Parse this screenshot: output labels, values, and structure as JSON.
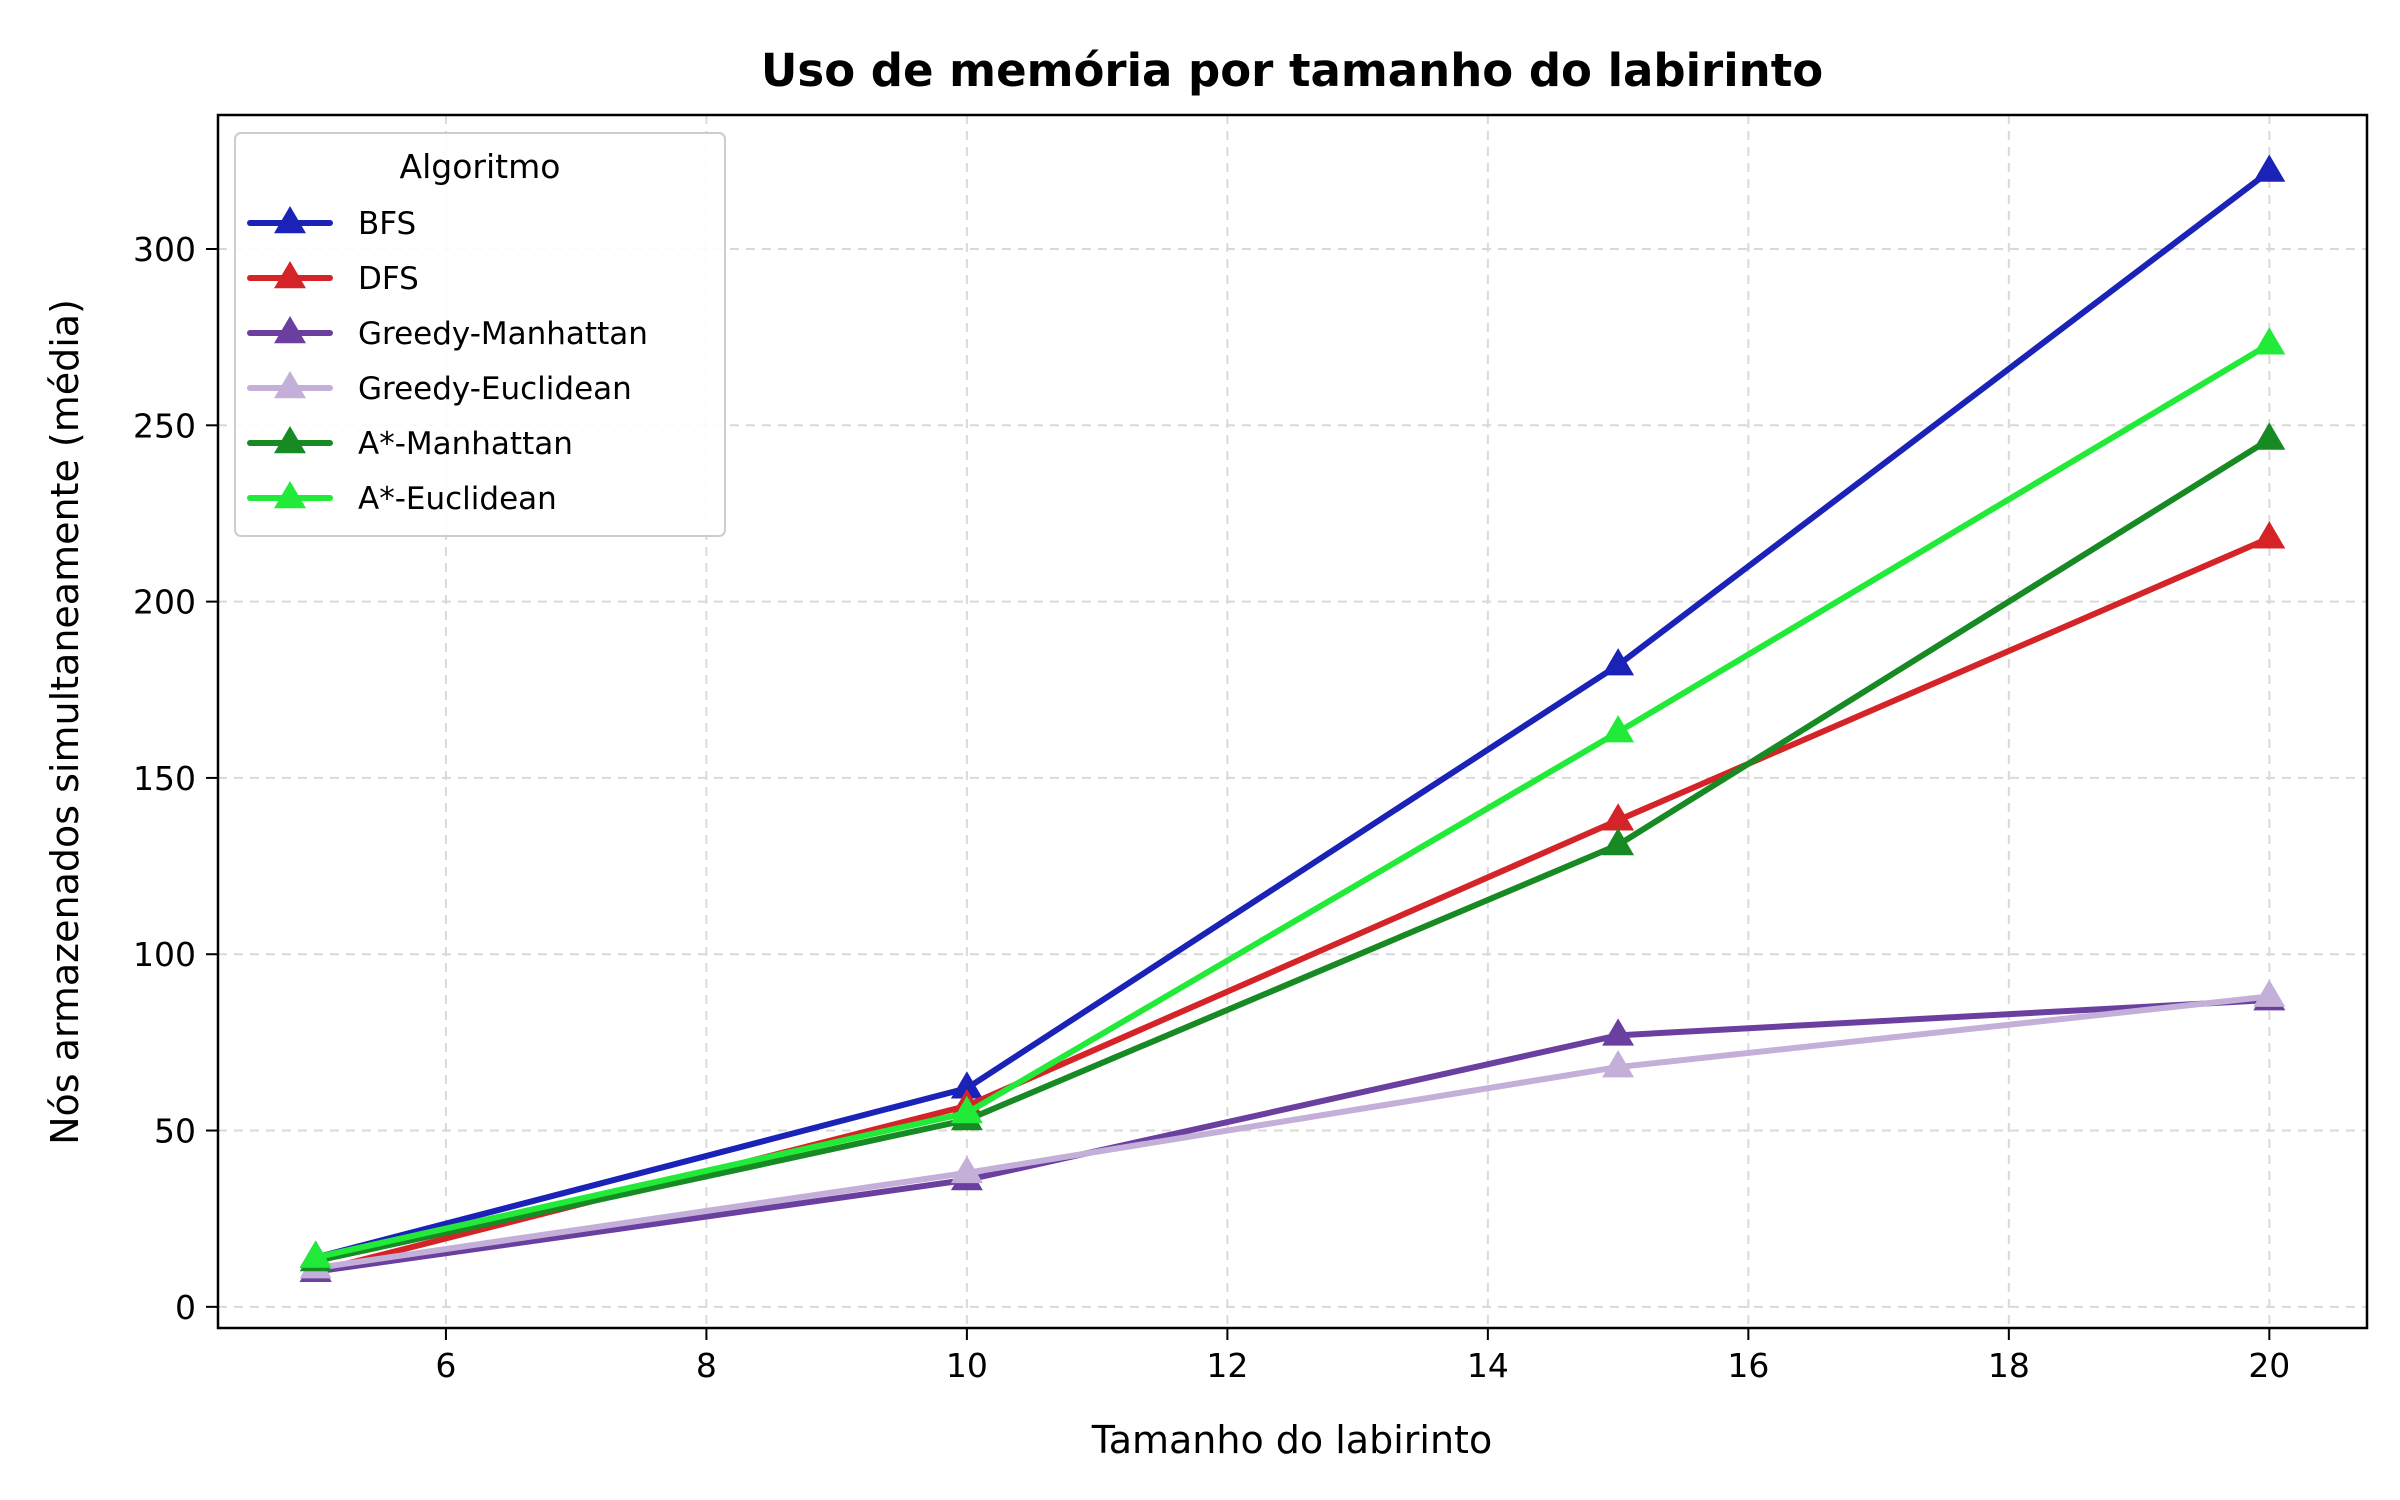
{
  "chart_data": {
    "type": "line",
    "title": "Uso de memória por tamanho do labirinto",
    "xlabel": "Tamanho do labirinto",
    "ylabel": "Nós armazenados simultaneamente (média)",
    "x": [
      5,
      10,
      15,
      20
    ],
    "xlim": [
      4.25,
      20.75
    ],
    "ylim": [
      -6,
      338
    ],
    "xticks": [
      6,
      8,
      10,
      12,
      14,
      16,
      18,
      20
    ],
    "yticks": [
      0,
      50,
      100,
      150,
      200,
      250,
      300
    ],
    "xtick_labels": [
      "6",
      "8",
      "10",
      "12",
      "14",
      "16",
      "18",
      "20"
    ],
    "ytick_labels": [
      "0",
      "50",
      "100",
      "150",
      "200",
      "250",
      "300"
    ],
    "grid": true,
    "marker": "triangle-up",
    "legend": {
      "title": "Algoritmo",
      "placement": "upper-left"
    },
    "series": [
      {
        "name": "BFS",
        "color": "#1a22b8",
        "values": [
          14,
          62,
          182,
          322
        ]
      },
      {
        "name": "DFS",
        "color": "#d42428",
        "values": [
          10,
          57,
          138,
          218
        ]
      },
      {
        "name": "Greedy-Manhattan",
        "color": "#6b3fa0",
        "values": [
          10,
          36,
          77,
          87
        ]
      },
      {
        "name": "Greedy-Euclidean",
        "color": "#c3afd8",
        "values": [
          11,
          38,
          68,
          88
        ]
      },
      {
        "name": "A*-Manhattan",
        "color": "#188a23",
        "values": [
          13,
          53,
          131,
          246
        ]
      },
      {
        "name": "A*-Euclidean",
        "color": "#22ea38",
        "values": [
          14,
          55,
          163,
          273
        ]
      }
    ]
  }
}
